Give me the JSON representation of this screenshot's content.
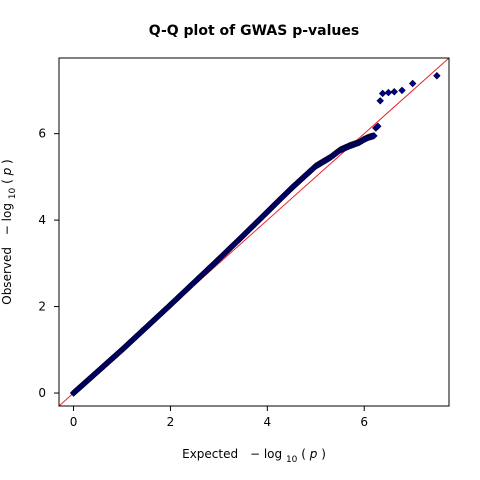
{
  "chart_data": {
    "type": "scatter",
    "title": "Q-Q plot of GWAS p-values",
    "xlabel_prefix": "Expected",
    "ylabel_prefix": "Observed",
    "axis_minus": "−",
    "axis_log": "log",
    "axis_base": "10",
    "axis_var": "p",
    "axis_open": "(",
    "axis_close": ")",
    "xlim": [
      -0.3,
      7.75
    ],
    "ylim": [
      -0.3,
      7.75
    ],
    "xticks": [
      0,
      2,
      4,
      6
    ],
    "yticks": [
      0,
      2,
      4,
      6
    ],
    "xtick_labels": [
      "0",
      "2",
      "4",
      "6"
    ],
    "ytick_labels": [
      "0",
      "2",
      "4",
      "6"
    ],
    "grid": false,
    "reference_line": {
      "slope": 1,
      "intercept": 0,
      "color": "#e8202a"
    },
    "marker_color": "#00008b",
    "marker_stroke": "#000033",
    "curve_points": [
      [
        0,
        0
      ],
      [
        0.5,
        0.5
      ],
      [
        1.0,
        1.0
      ],
      [
        1.5,
        1.52
      ],
      [
        2.0,
        2.04
      ],
      [
        2.5,
        2.57
      ],
      [
        3.0,
        3.1
      ],
      [
        3.5,
        3.64
      ],
      [
        4.0,
        4.19
      ],
      [
        4.5,
        4.74
      ],
      [
        5.0,
        5.25
      ],
      [
        5.3,
        5.45
      ],
      [
        5.5,
        5.62
      ],
      [
        5.7,
        5.72
      ],
      [
        5.9,
        5.8
      ],
      [
        6.0,
        5.87
      ],
      [
        6.1,
        5.92
      ],
      [
        6.2,
        5.95
      ]
    ],
    "outliers": [
      [
        6.24,
        6.13
      ],
      [
        6.28,
        6.17
      ],
      [
        6.33,
        6.76
      ],
      [
        6.38,
        6.93
      ],
      [
        6.5,
        6.95
      ],
      [
        6.62,
        6.97
      ],
      [
        6.78,
        7.0
      ],
      [
        7.0,
        7.16
      ],
      [
        7.5,
        7.34
      ]
    ]
  }
}
